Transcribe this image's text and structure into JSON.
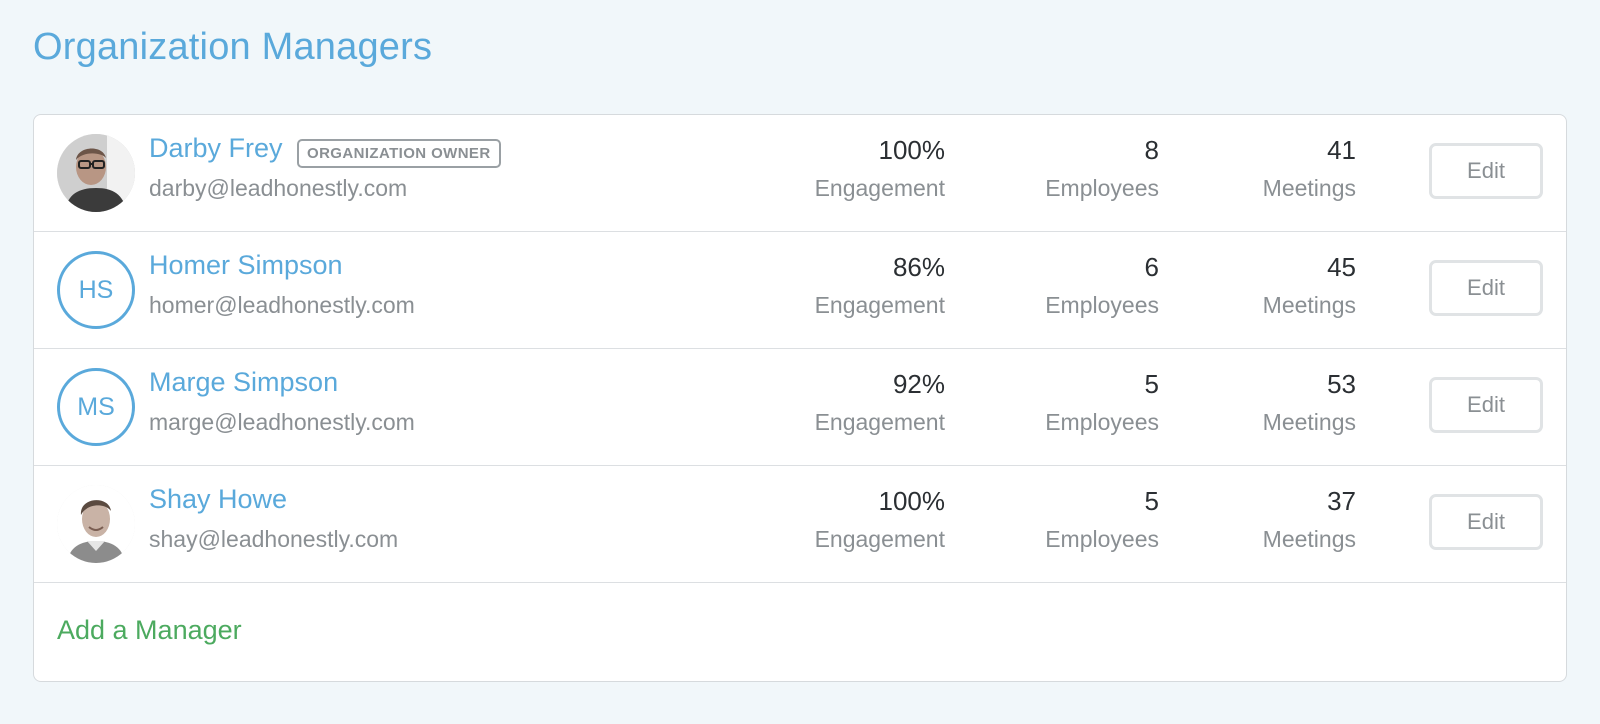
{
  "page": {
    "title": "Organization Managers"
  },
  "managers": [
    {
      "name": "Darby Frey",
      "badge": "ORGANIZATION OWNER",
      "email": "darby@leadhonestly.com",
      "avatar_type": "photo",
      "engagement": "100%",
      "engagement_label": "Engagement",
      "employees": "8",
      "employees_label": "Employees",
      "meetings": "41",
      "meetings_label": "Meetings",
      "edit_label": "Edit"
    },
    {
      "name": "Homer Simpson",
      "email": "homer@leadhonestly.com",
      "avatar_type": "initials",
      "initials": "HS",
      "engagement": "86%",
      "engagement_label": "Engagement",
      "employees": "6",
      "employees_label": "Employees",
      "meetings": "45",
      "meetings_label": "Meetings",
      "edit_label": "Edit"
    },
    {
      "name": "Marge Simpson",
      "email": "marge@leadhonestly.com",
      "avatar_type": "initials",
      "initials": "MS",
      "engagement": "92%",
      "engagement_label": "Engagement",
      "employees": "5",
      "employees_label": "Employees",
      "meetings": "53",
      "meetings_label": "Meetings",
      "edit_label": "Edit"
    },
    {
      "name": "Shay Howe",
      "email": "shay@leadhonestly.com",
      "avatar_type": "photo",
      "engagement": "100%",
      "engagement_label": "Engagement",
      "employees": "5",
      "employees_label": "Employees",
      "meetings": "37",
      "meetings_label": "Meetings",
      "edit_label": "Edit"
    }
  ],
  "add_manager_label": "Add a Manager",
  "colors": {
    "accent": "#5aa9db",
    "add_link": "#4caa5f",
    "muted_text": "#8a8f93",
    "background": "#f1f7fa"
  }
}
